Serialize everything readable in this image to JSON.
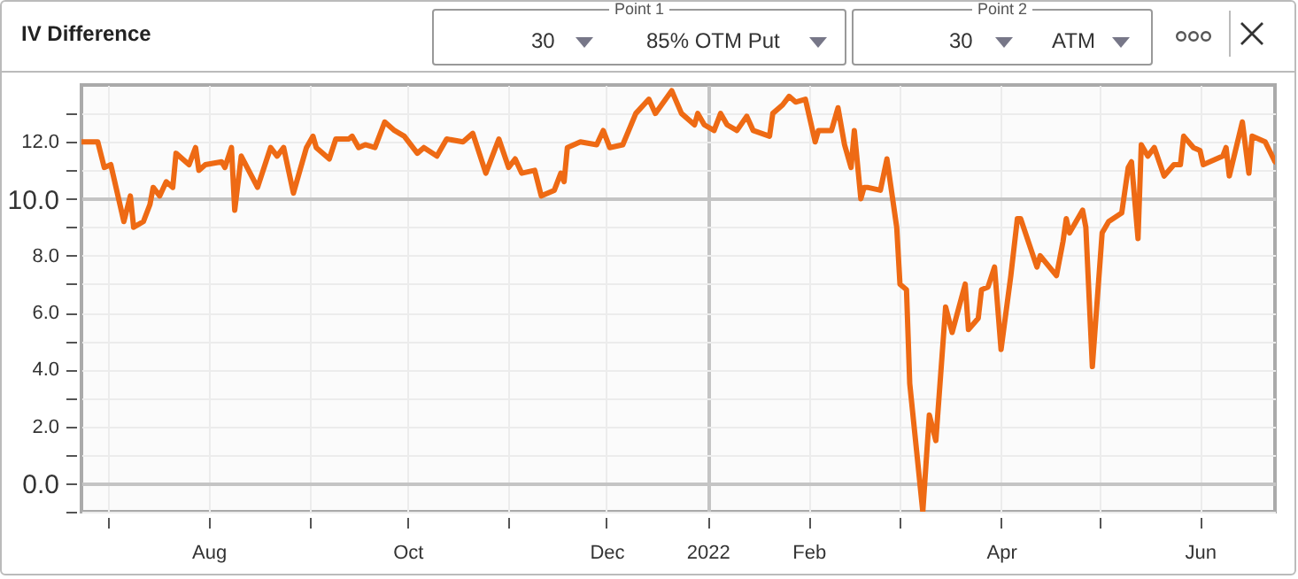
{
  "chart_data": {
    "type": "line",
    "title": "IV Difference",
    "annotations": [
      "Point 1",
      "30",
      "85% OTM Put",
      "Point 2",
      "30",
      "ATM"
    ],
    "x": [
      "2021-06-23",
      "2021-06-28",
      "2021-06-30",
      "2021-07-02",
      "2021-07-03",
      "2021-07-06",
      "2021-07-08",
      "2021-07-09",
      "2021-07-12",
      "2021-07-14",
      "2021-07-15",
      "2021-07-17",
      "2021-07-19",
      "2021-07-21",
      "2021-07-22",
      "2021-07-26",
      "2021-07-28",
      "2021-07-29",
      "2021-07-31",
      "2021-08-05",
      "2021-08-06",
      "2021-08-08",
      "2021-08-09",
      "2021-08-11",
      "2021-08-16",
      "2021-08-20",
      "2021-08-22",
      "2021-08-24",
      "2021-08-27",
      "2021-08-31",
      "2021-09-02",
      "2021-09-03",
      "2021-09-07",
      "2021-09-09",
      "2021-09-13",
      "2021-09-14",
      "2021-09-16",
      "2021-09-18",
      "2021-09-21",
      "2021-09-24",
      "2021-09-27",
      "2021-09-30",
      "2021-10-04",
      "2021-10-06",
      "2021-10-10",
      "2021-10-13",
      "2021-10-18",
      "2021-10-21",
      "2021-10-25",
      "2021-10-29",
      "2021-11-01",
      "2021-11-03",
      "2021-11-05",
      "2021-11-09",
      "2021-11-11",
      "2021-11-15",
      "2021-11-17",
      "2021-11-18",
      "2021-11-19",
      "2021-11-23",
      "2021-11-28",
      "2021-11-30",
      "2021-12-02",
      "2021-12-06",
      "2021-12-10",
      "2021-12-14",
      "2021-12-16",
      "2021-12-21",
      "2021-12-24",
      "2021-12-28",
      "2021-12-29",
      "2021-12-31",
      "2022-01-03",
      "2022-01-05",
      "2022-01-07",
      "2022-01-10",
      "2022-01-13",
      "2022-01-15",
      "2022-01-20",
      "2022-01-21",
      "2022-01-24",
      "2022-01-26",
      "2022-01-28",
      "2022-01-31",
      "2022-02-03",
      "2022-02-04",
      "2022-02-08",
      "2022-02-10",
      "2022-02-12",
      "2022-02-14",
      "2022-02-15",
      "2022-02-17",
      "2022-02-18",
      "2022-02-19",
      "2022-02-23",
      "2022-02-25",
      "2022-02-28",
      "2022-03-01",
      "2022-03-03",
      "2022-03-04",
      "2022-03-08",
      "2022-03-10",
      "2022-03-12",
      "2022-03-15",
      "2022-03-17",
      "2022-03-21",
      "2022-03-22",
      "2022-03-25",
      "2022-03-26",
      "2022-03-28",
      "2022-03-30",
      "2022-04-01",
      "2022-04-04",
      "2022-04-06",
      "2022-04-07",
      "2022-04-12",
      "2022-04-13",
      "2022-04-18",
      "2022-04-20",
      "2022-04-21",
      "2022-04-22",
      "2022-04-26",
      "2022-04-27",
      "2022-04-29",
      "2022-05-02",
      "2022-05-04",
      "2022-05-08",
      "2022-05-10",
      "2022-05-11",
      "2022-05-13",
      "2022-05-14",
      "2022-05-16",
      "2022-05-18",
      "2022-05-21",
      "2022-05-24",
      "2022-05-26",
      "2022-05-27",
      "2022-05-30",
      "2022-06-01",
      "2022-06-02",
      "2022-06-08",
      "2022-06-09",
      "2022-06-10",
      "2022-06-14",
      "2022-06-16",
      "2022-06-17",
      "2022-06-21",
      "2022-06-24"
    ],
    "series": [
      {
        "color": "#ee6a14",
        "values": [
          12.0,
          12.0,
          11.1,
          11.2,
          10.7,
          9.2,
          10.1,
          9.0,
          9.2,
          9.8,
          10.4,
          10.1,
          10.6,
          10.4,
          11.6,
          11.2,
          11.8,
          11.0,
          11.2,
          11.3,
          11.1,
          11.8,
          9.6,
          11.5,
          10.4,
          11.8,
          11.5,
          11.8,
          10.2,
          11.8,
          12.2,
          11.8,
          11.4,
          12.1,
          12.1,
          12.2,
          11.8,
          11.9,
          11.8,
          12.7,
          12.4,
          12.2,
          11.6,
          11.8,
          11.5,
          12.1,
          12.0,
          12.3,
          10.9,
          12.1,
          11.1,
          11.4,
          10.9,
          11.0,
          10.1,
          10.3,
          10.9,
          10.6,
          11.8,
          12.0,
          11.9,
          12.4,
          11.8,
          11.9,
          13.0,
          13.5,
          13.0,
          13.8,
          13.0,
          12.6,
          13.0,
          12.6,
          12.4,
          13.0,
          12.6,
          12.4,
          12.9,
          12.4,
          12.2,
          13.0,
          13.3,
          13.6,
          13.4,
          13.5,
          12.0,
          12.4,
          12.4,
          13.2,
          11.9,
          11.1,
          12.4,
          10.0,
          10.4,
          10.4,
          10.3,
          11.4,
          9.0,
          7.0,
          6.8,
          3.5,
          -1.0,
          2.4,
          1.5,
          6.2,
          5.3,
          7.0,
          5.4,
          5.8,
          6.8,
          6.9,
          7.6,
          4.7,
          7.3,
          9.3,
          9.3,
          7.6,
          8.0,
          7.3,
          8.5,
          9.3,
          8.8,
          9.6,
          9.0,
          4.1,
          8.8,
          9.2,
          9.5,
          11.1,
          11.3,
          8.6,
          11.9,
          11.5,
          11.8,
          10.8,
          11.2,
          11.2,
          12.2,
          11.8,
          11.7,
          11.2,
          11.5,
          11.8,
          10.8,
          12.7,
          10.9,
          12.2,
          12.0,
          11.3
        ]
      }
    ],
    "xlim": [
      "2021-06-23",
      "2022-06-24"
    ],
    "xticks": [
      {
        "value": "2021-07-01",
        "label": null
      },
      {
        "value": "2021-08-01",
        "label": "Aug"
      },
      {
        "value": "2021-09-01",
        "label": null
      },
      {
        "value": "2021-10-01",
        "label": "Oct"
      },
      {
        "value": "2021-11-01",
        "label": null
      },
      {
        "value": "2021-12-01",
        "label": "Dec"
      },
      {
        "value": "2022-01-01",
        "label": "2022"
      },
      {
        "value": "2022-02-01",
        "label": "Feb"
      },
      {
        "value": "2022-03-01",
        "label": null
      },
      {
        "value": "2022-04-01",
        "label": "Apr"
      },
      {
        "value": "2022-05-01",
        "label": null
      },
      {
        "value": "2022-06-01",
        "label": "Jun"
      }
    ],
    "ylim": [
      -1,
      14
    ],
    "yticks": [
      {
        "value": -1,
        "label": null
      },
      {
        "value": 0,
        "label": "0.0"
      },
      {
        "value": 1,
        "label": null
      },
      {
        "value": 2,
        "label": "2.0"
      },
      {
        "value": 3,
        "label": null
      },
      {
        "value": 4,
        "label": "4.0"
      },
      {
        "value": 5,
        "label": null
      },
      {
        "value": 6,
        "label": "6.0"
      },
      {
        "value": 7,
        "label": null
      },
      {
        "value": 8,
        "label": "8.0"
      },
      {
        "value": 9,
        "label": null
      },
      {
        "value": 10,
        "label": "10.0"
      },
      {
        "value": 11,
        "label": null
      },
      {
        "value": 12,
        "label": "12.0"
      },
      {
        "value": 13,
        "label": null
      }
    ],
    "grid": true
  }
}
